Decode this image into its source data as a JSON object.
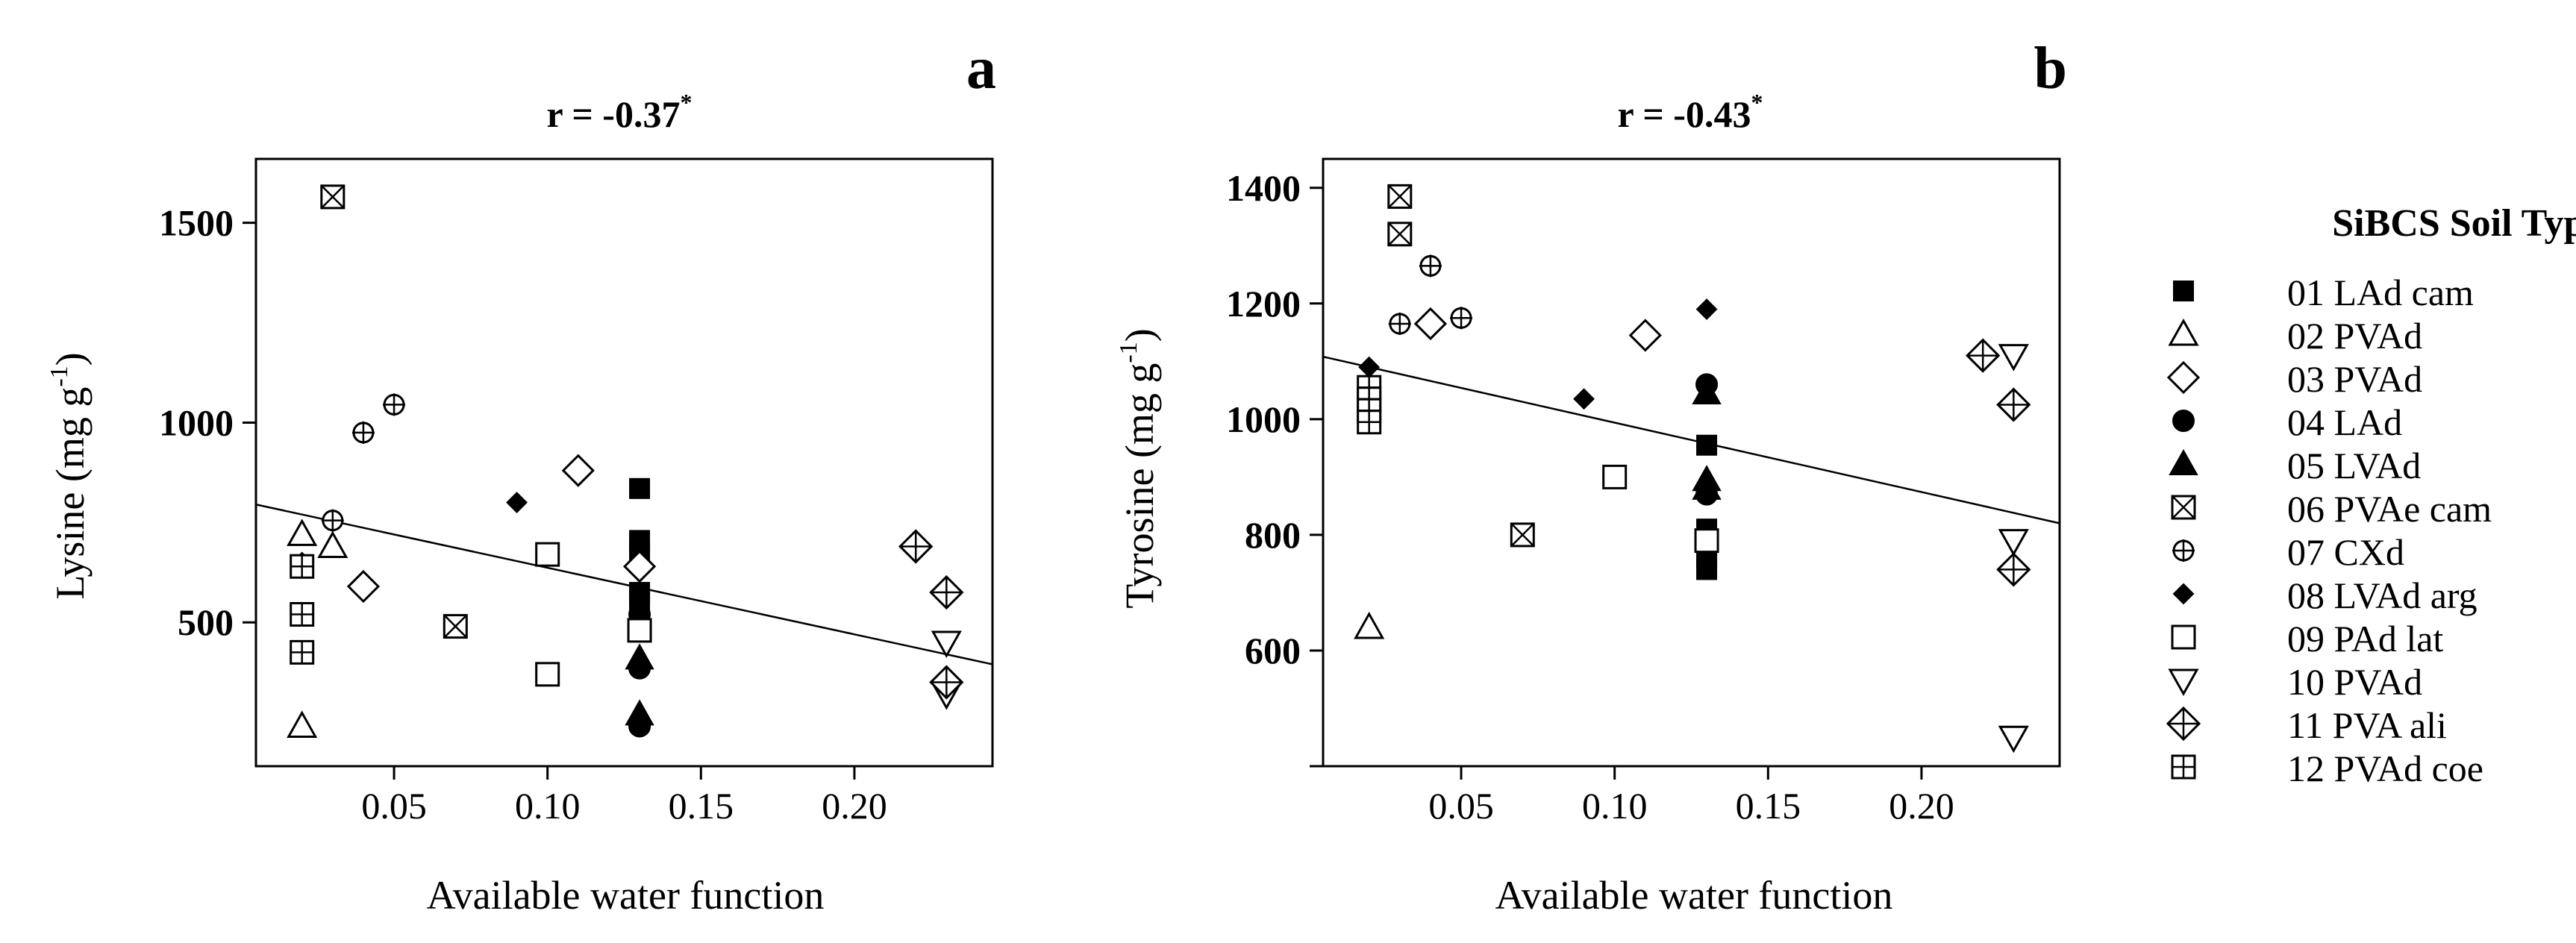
{
  "chart_data": [
    {
      "type": "scatter",
      "panel_label": "a",
      "title_prefix": "r = -0.37",
      "title_sup": "*",
      "xlabel": "Available water function",
      "ylabel_main": "Lysine (mg g",
      "ylabel_sup": "-1",
      "ylabel_close": ")",
      "xlim": [
        0.005,
        0.245
      ],
      "ylim": [
        140,
        1660
      ],
      "xticks": [
        0.05,
        0.1,
        0.15,
        0.2
      ],
      "xtick_labels": [
        "0.05",
        "0.10",
        "0.15",
        "0.20"
      ],
      "yticks": [
        500,
        1000,
        1500
      ],
      "ytick_labels": [
        "500",
        "1000",
        "1500"
      ],
      "regression": {
        "x": [
          0.005,
          0.245
        ],
        "y": [
          795,
          395
        ]
      },
      "points": [
        {
          "soil": "01",
          "x": 0.13,
          "y": 835
        },
        {
          "soil": "01",
          "x": 0.13,
          "y": 705
        },
        {
          "soil": "01",
          "x": 0.13,
          "y": 675
        },
        {
          "soil": "01",
          "x": 0.13,
          "y": 575
        },
        {
          "soil": "01",
          "x": 0.13,
          "y": 555
        },
        {
          "soil": "02",
          "x": 0.02,
          "y": 720
        },
        {
          "soil": "02",
          "x": 0.03,
          "y": 690
        },
        {
          "soil": "02",
          "x": 0.02,
          "y": 240
        },
        {
          "soil": "03",
          "x": 0.11,
          "y": 880
        },
        {
          "soil": "03",
          "x": 0.04,
          "y": 590
        },
        {
          "soil": "03",
          "x": 0.13,
          "y": 640
        },
        {
          "soil": "04",
          "x": 0.13,
          "y": 520
        },
        {
          "soil": "04",
          "x": 0.13,
          "y": 385
        },
        {
          "soil": "04",
          "x": 0.13,
          "y": 240
        },
        {
          "soil": "05",
          "x": 0.13,
          "y": 410
        },
        {
          "soil": "05",
          "x": 0.13,
          "y": 270
        },
        {
          "soil": "06",
          "x": 0.03,
          "y": 1565
        },
        {
          "soil": "06",
          "x": 0.07,
          "y": 490
        },
        {
          "soil": "07",
          "x": 0.05,
          "y": 1045
        },
        {
          "soil": "07",
          "x": 0.04,
          "y": 975
        },
        {
          "soil": "07",
          "x": 0.03,
          "y": 755
        },
        {
          "soil": "08",
          "x": 0.09,
          "y": 800
        },
        {
          "soil": "08",
          "x": 0.02,
          "y": 650
        },
        {
          "soil": "09",
          "x": 0.1,
          "y": 670
        },
        {
          "soil": "09",
          "x": 0.1,
          "y": 370
        },
        {
          "soil": "09",
          "x": 0.13,
          "y": 480
        },
        {
          "soil": "10",
          "x": 0.23,
          "y": 450
        },
        {
          "soil": "10",
          "x": 0.23,
          "y": 320
        },
        {
          "soil": "11",
          "x": 0.22,
          "y": 690
        },
        {
          "soil": "11",
          "x": 0.23,
          "y": 575
        },
        {
          "soil": "11",
          "x": 0.23,
          "y": 350
        },
        {
          "soil": "12",
          "x": 0.02,
          "y": 640
        },
        {
          "soil": "12",
          "x": 0.02,
          "y": 520
        },
        {
          "soil": "12",
          "x": 0.02,
          "y": 425
        }
      ]
    },
    {
      "type": "scatter",
      "panel_label": "b",
      "title_prefix": "r = -0.43",
      "title_sup": "*",
      "xlabel": "Available water function",
      "ylabel_main": "Tyrosine (mg g",
      "ylabel_sup": "-1",
      "ylabel_close": ")",
      "xlim": [
        0.005,
        0.245
      ],
      "ylim": [
        400,
        1450
      ],
      "xticks": [
        0.05,
        0.1,
        0.15,
        0.2
      ],
      "xtick_labels": [
        "0.05",
        "0.10",
        "0.15",
        "0.20"
      ],
      "yticks": [
        400,
        600,
        800,
        1000,
        1200,
        1400
      ],
      "ytick_labels": [
        "",
        "600",
        "800",
        "1000",
        "1200",
        "1400"
      ],
      "regression": {
        "x": [
          0.005,
          0.245
        ],
        "y": [
          1108,
          820
        ]
      },
      "points": [
        {
          "soil": "01",
          "x": 0.13,
          "y": 955
        },
        {
          "soil": "01",
          "x": 0.13,
          "y": 810
        },
        {
          "soil": "01",
          "x": 0.13,
          "y": 760
        },
        {
          "soil": "01",
          "x": 0.13,
          "y": 740
        },
        {
          "soil": "02",
          "x": 0.02,
          "y": 640
        },
        {
          "soil": "03",
          "x": 0.04,
          "y": 1165
        },
        {
          "soil": "03",
          "x": 0.11,
          "y": 1145
        },
        {
          "soil": "04",
          "x": 0.13,
          "y": 1060
        },
        {
          "soil": "04",
          "x": 0.13,
          "y": 870
        },
        {
          "soil": "05",
          "x": 0.13,
          "y": 1045
        },
        {
          "soil": "05",
          "x": 0.13,
          "y": 895
        },
        {
          "soil": "05",
          "x": 0.13,
          "y": 880
        },
        {
          "soil": "06",
          "x": 0.03,
          "y": 1385
        },
        {
          "soil": "06",
          "x": 0.03,
          "y": 1320
        },
        {
          "soil": "06",
          "x": 0.07,
          "y": 800
        },
        {
          "soil": "07",
          "x": 0.04,
          "y": 1265
        },
        {
          "soil": "07",
          "x": 0.03,
          "y": 1165
        },
        {
          "soil": "07",
          "x": 0.05,
          "y": 1175
        },
        {
          "soil": "08",
          "x": 0.13,
          "y": 1190
        },
        {
          "soil": "08",
          "x": 0.02,
          "y": 1090
        },
        {
          "soil": "08",
          "x": 0.09,
          "y": 1035
        },
        {
          "soil": "09",
          "x": 0.1,
          "y": 900
        },
        {
          "soil": "09",
          "x": 0.13,
          "y": 790
        },
        {
          "soil": "10",
          "x": 0.23,
          "y": 1110
        },
        {
          "soil": "10",
          "x": 0.23,
          "y": 790
        },
        {
          "soil": "10",
          "x": 0.23,
          "y": 450
        },
        {
          "soil": "11",
          "x": 0.22,
          "y": 1110
        },
        {
          "soil": "11",
          "x": 0.23,
          "y": 1025
        },
        {
          "soil": "11",
          "x": 0.23,
          "y": 740
        },
        {
          "soil": "12",
          "x": 0.02,
          "y": 1055
        },
        {
          "soil": "12",
          "x": 0.02,
          "y": 1035
        },
        {
          "soil": "12",
          "x": 0.02,
          "y": 1015
        },
        {
          "soil": "12",
          "x": 0.02,
          "y": 995
        }
      ]
    }
  ],
  "legend": {
    "title": "SiBCS Soil Type:",
    "entries": [
      {
        "id": "01",
        "label": "01 LAd cam",
        "marker": "filled-square"
      },
      {
        "id": "02",
        "label": "02 PVAd",
        "marker": "open-triangle-up"
      },
      {
        "id": "03",
        "label": "03 PVAd",
        "marker": "open-diamond"
      },
      {
        "id": "04",
        "label": "04 LAd",
        "marker": "filled-circle"
      },
      {
        "id": "05",
        "label": "05 LVAd",
        "marker": "filled-triangle-up"
      },
      {
        "id": "06",
        "label": "06 PVAe cam",
        "marker": "boxed-x"
      },
      {
        "id": "07",
        "label": "07 CXd",
        "marker": "circle-plus"
      },
      {
        "id": "08",
        "label": "08 LVAd arg",
        "marker": "filled-diamond"
      },
      {
        "id": "09",
        "label": "09 PAd lat",
        "marker": "open-square"
      },
      {
        "id": "10",
        "label": "10 PVAd",
        "marker": "open-triangle-down"
      },
      {
        "id": "11",
        "label": "11 PVA ali",
        "marker": "diamond-plus"
      },
      {
        "id": "12",
        "label": "12 PVAd coe",
        "marker": "boxed-plus"
      }
    ]
  }
}
